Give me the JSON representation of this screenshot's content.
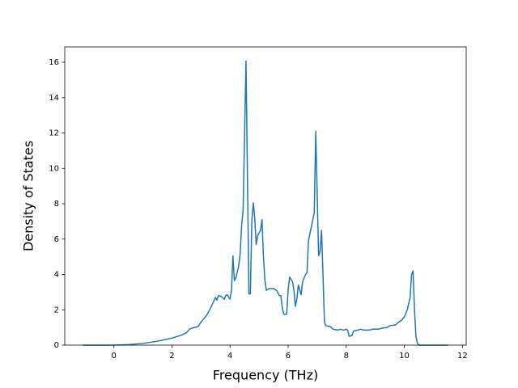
{
  "chart_data": {
    "type": "line",
    "x_label": "Frequency (THz)",
    "y_label": "Density of States",
    "x": [
      -1.06,
      0,
      0.5,
      1.0,
      1.5,
      2.0,
      2.3,
      2.5,
      2.6,
      2.7,
      2.9,
      3.0,
      3.2,
      3.3,
      3.5,
      3.55,
      3.6,
      3.7,
      3.8,
      3.85,
      3.9,
      4.0,
      4.05,
      4.1,
      4.15,
      4.2,
      4.3,
      4.35,
      4.4,
      4.45,
      4.55,
      4.65,
      4.7,
      4.75,
      4.8,
      4.85,
      4.9,
      4.95,
      5.05,
      5.1,
      5.15,
      5.2,
      5.25,
      5.35,
      5.5,
      5.6,
      5.7,
      5.75,
      5.8,
      5.85,
      5.95,
      6.0,
      6.05,
      6.15,
      6.2,
      6.25,
      6.3,
      6.35,
      6.45,
      6.5,
      6.6,
      6.65,
      6.7,
      6.8,
      6.9,
      6.95,
      7.05,
      7.1,
      7.15,
      7.2,
      7.25,
      7.3,
      7.45,
      7.55,
      7.7,
      7.8,
      7.9,
      8.0,
      8.05,
      8.1,
      8.2,
      8.25,
      8.4,
      8.5,
      8.6,
      8.8,
      8.9,
      9.1,
      9.2,
      9.4,
      9.5,
      9.7,
      9.8,
      9.9,
      10.0,
      10.1,
      10.2,
      10.25,
      10.3,
      10.35,
      10.4,
      10.45,
      10.5,
      11.5
    ],
    "series": [
      {
        "color": "#1f77b4",
        "values": [
          0,
          0,
          0.03,
          0.1,
          0.22,
          0.4,
          0.55,
          0.7,
          0.9,
          0.97,
          1.05,
          1.3,
          1.7,
          2.0,
          2.7,
          2.55,
          2.8,
          2.75,
          2.6,
          2.8,
          2.85,
          2.6,
          3.1,
          5.05,
          3.65,
          3.8,
          4.5,
          5.2,
          6.8,
          7.6,
          16.07,
          2.9,
          2.9,
          7.0,
          8.05,
          7.2,
          5.7,
          6.2,
          6.5,
          7.1,
          5.0,
          3.7,
          3.1,
          3.2,
          3.2,
          3.1,
          2.8,
          2.8,
          2.1,
          1.75,
          1.75,
          3.1,
          3.85,
          3.6,
          3.1,
          2.2,
          2.6,
          3.4,
          2.85,
          3.6,
          4.0,
          4.1,
          5.9,
          6.7,
          7.5,
          12.1,
          5.05,
          5.3,
          6.5,
          4.0,
          1.3,
          1.1,
          1.05,
          0.9,
          0.85,
          0.9,
          0.85,
          0.9,
          0.85,
          0.5,
          0.55,
          0.8,
          0.85,
          0.9,
          0.85,
          0.85,
          0.9,
          0.9,
          0.95,
          1.0,
          1.1,
          1.15,
          1.3,
          1.4,
          1.6,
          2.0,
          2.7,
          4.0,
          4.2,
          2.0,
          0.5,
          0.1,
          0.0,
          0
        ]
      }
    ],
    "xlim": [
      -1.69,
      12.13
    ],
    "ylim": [
      0,
      16.87
    ],
    "xticks": [
      0,
      2,
      4,
      6,
      8,
      10,
      12
    ],
    "yticks": [
      0,
      2,
      4,
      6,
      8,
      10,
      12,
      14,
      16
    ]
  }
}
